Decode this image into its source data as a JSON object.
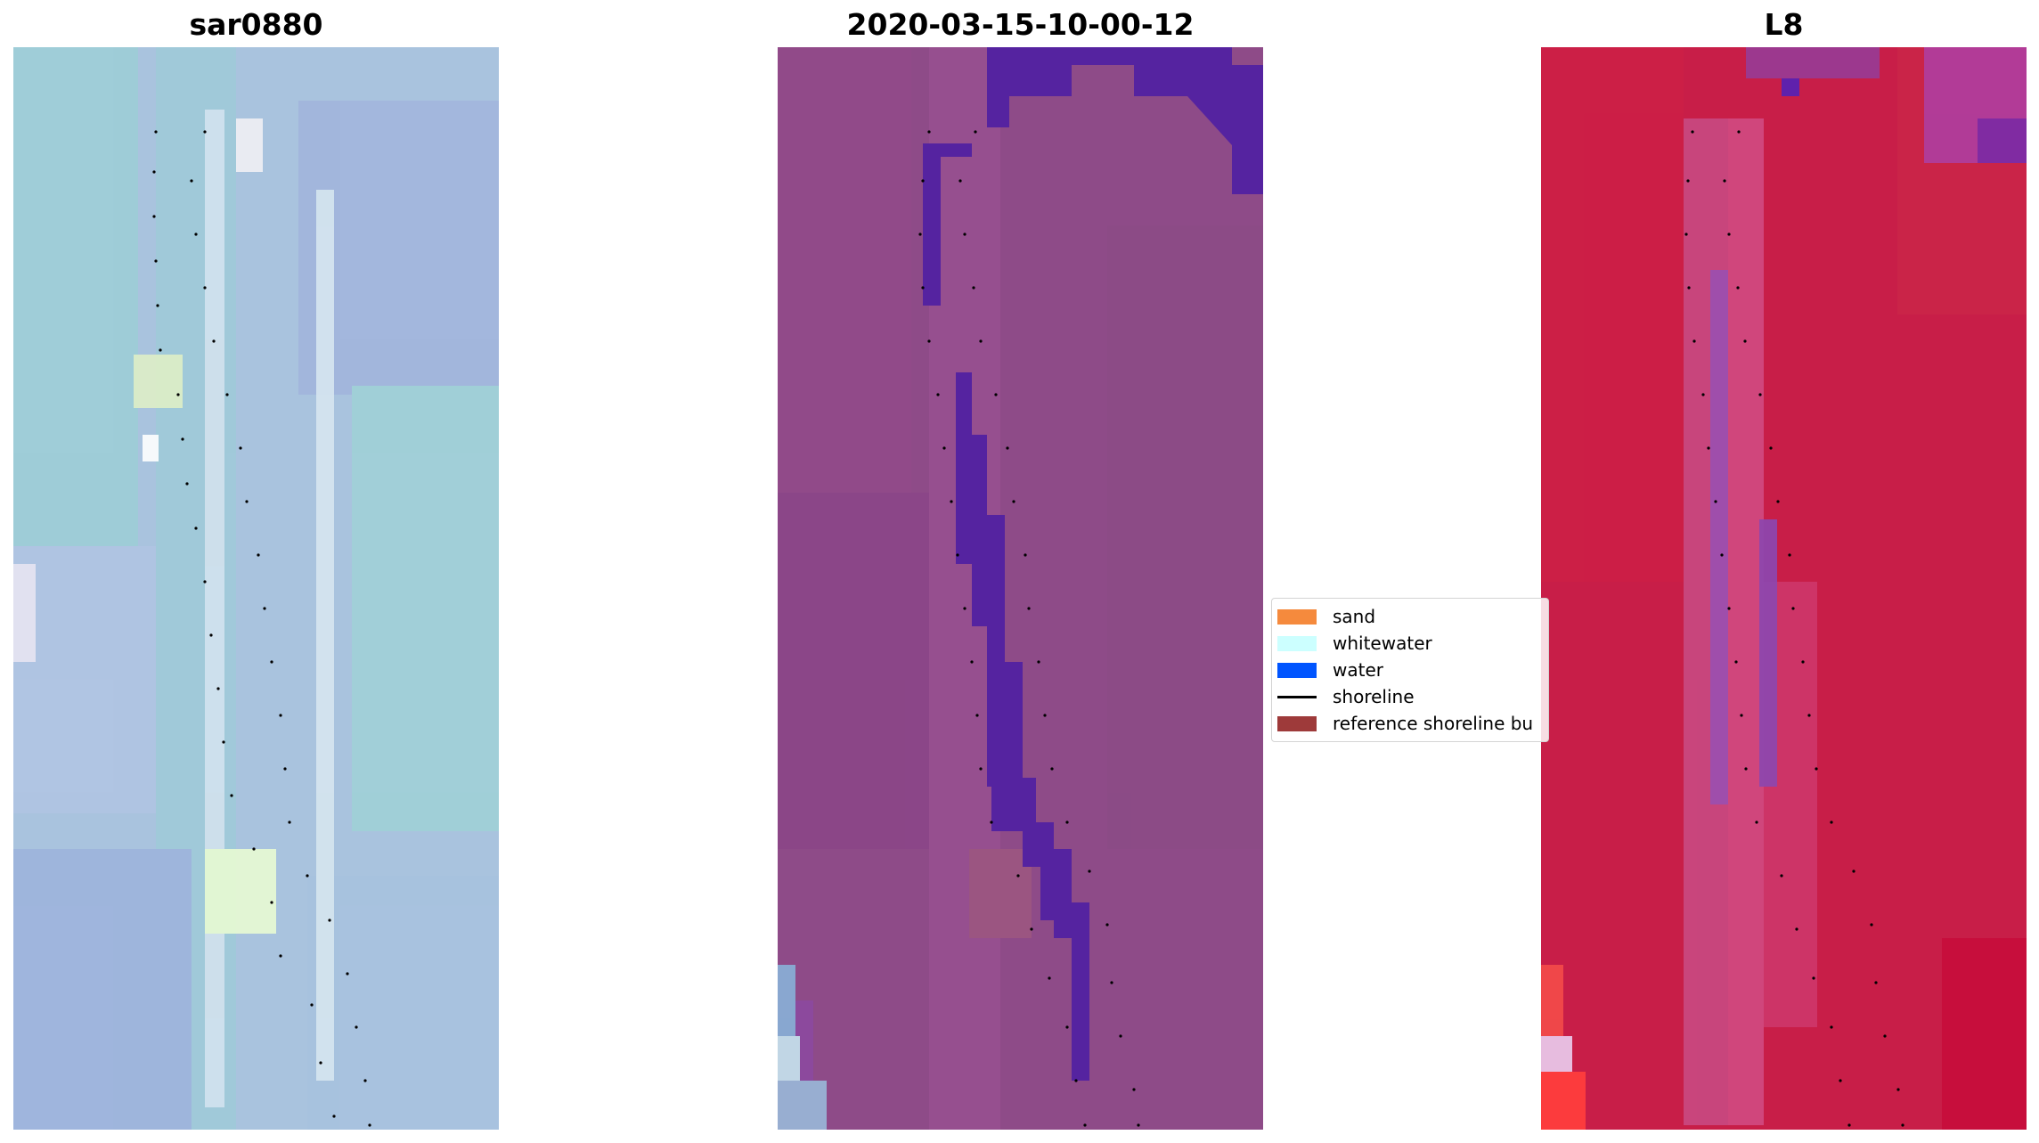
{
  "panels": [
    {
      "title": "sar0880",
      "base_color": "#a9c3de"
    },
    {
      "title": "2020-03-15-10-00-12",
      "base_color": "#8e4b88"
    },
    {
      "title": "L8",
      "base_color": "#c81e48"
    }
  ],
  "legend": {
    "items": [
      {
        "label": "sand",
        "type": "patch",
        "color": "#f58a3d"
      },
      {
        "label": "whitewater",
        "type": "patch",
        "color": "#ccffff"
      },
      {
        "label": "water",
        "type": "patch",
        "color": "#0055ff"
      },
      {
        "label": "shoreline",
        "type": "line",
        "color": "#000000"
      },
      {
        "label": "reference shoreline bu",
        "type": "patch",
        "color": "#9e3a3a"
      }
    ]
  }
}
